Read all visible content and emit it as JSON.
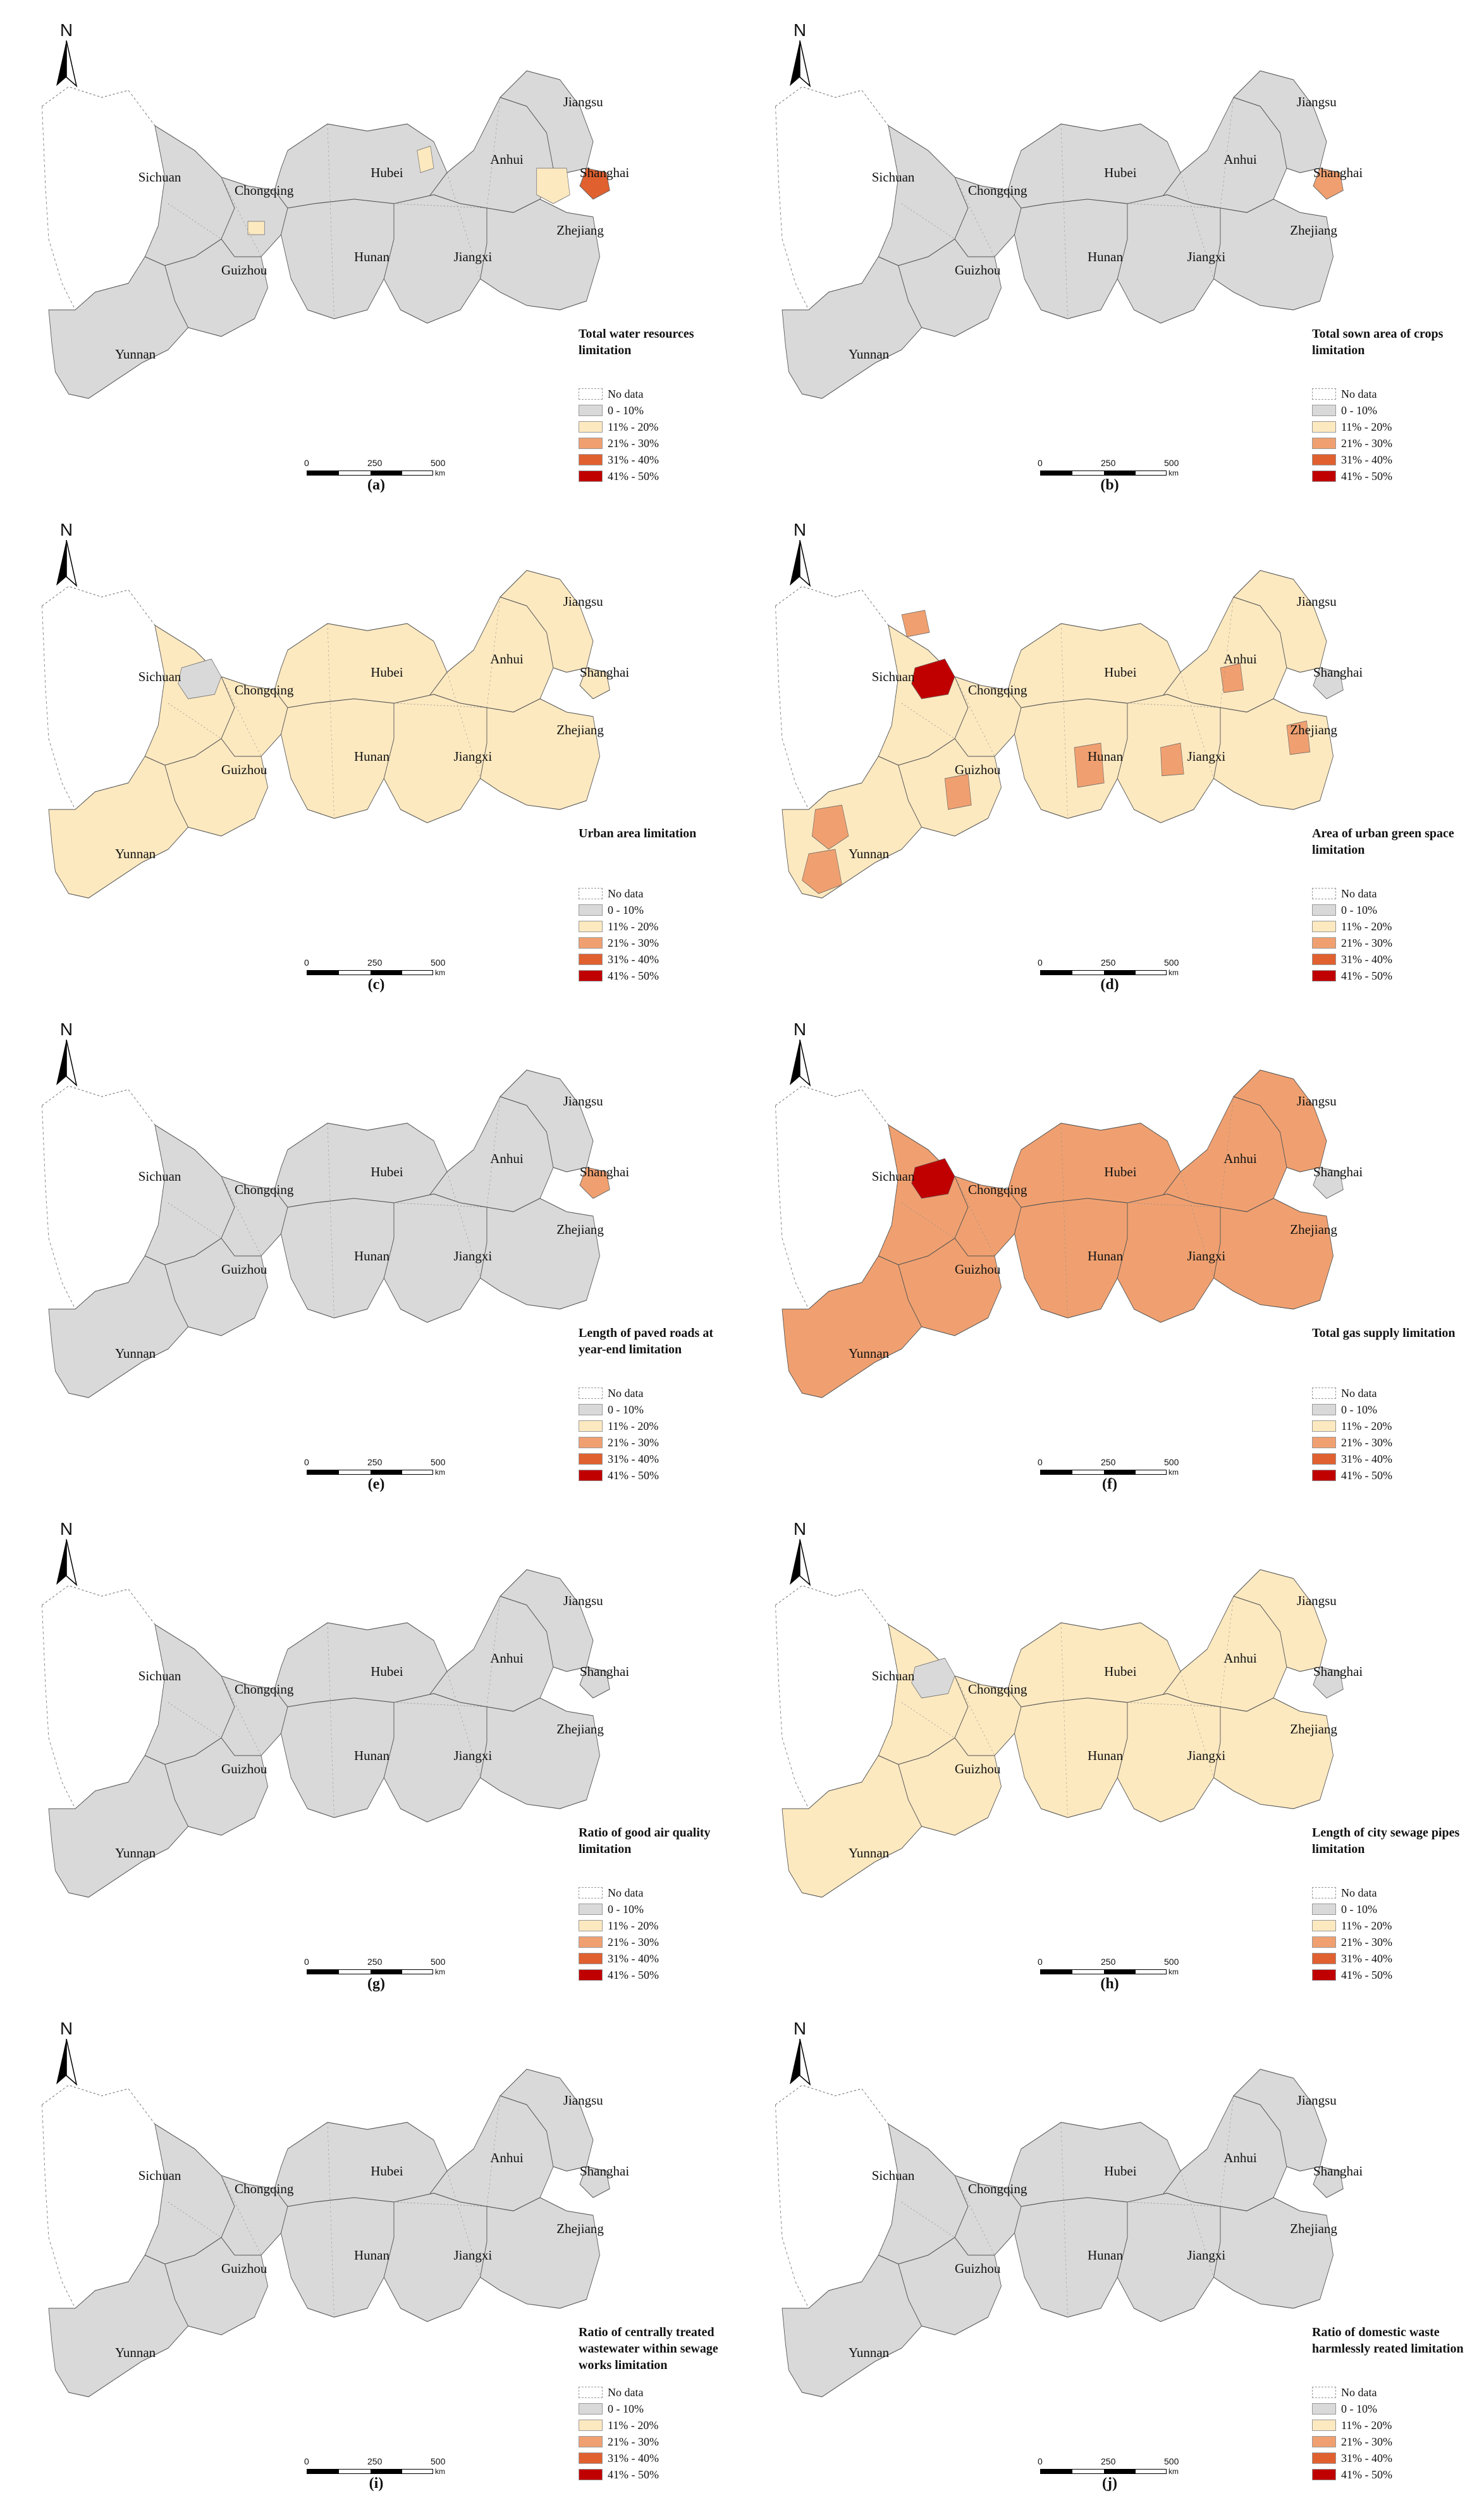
{
  "north_label": "N",
  "scale": {
    "ticks": [
      "0",
      "250",
      "500"
    ],
    "unit": "km"
  },
  "legend": [
    {
      "label": "No data",
      "color": "#ffffff"
    },
    {
      "label": "0 - 10%",
      "color": "#d9d9d9"
    },
    {
      "label": "11% - 20%",
      "color": "#fde9c0"
    },
    {
      "label": "21% - 30%",
      "color": "#f0a070"
    },
    {
      "label": "31% - 40%",
      "color": "#e06030"
    },
    {
      "label": "41% - 50%",
      "color": "#c00000"
    }
  ],
  "provinces": [
    "Sichuan",
    "Chongqing",
    "Guizhou",
    "Yunnan",
    "Hubei",
    "Hunan",
    "Anhui",
    "Jiangxi",
    "Jiangsu",
    "Zhejiang",
    "Shanghai"
  ],
  "panels": [
    {
      "label": "(a)",
      "title": "Total water resources limitation",
      "base": "#d9d9d9",
      "highlights": [
        {
          "region": "shanghai",
          "color": "#e06030"
        },
        {
          "region": "suzhou",
          "color": "#fde9c0"
        },
        {
          "region": "hubei_spot",
          "color": "#fde9c0"
        },
        {
          "region": "chongqing_spot",
          "color": "#fde9c0"
        }
      ]
    },
    {
      "label": "(b)",
      "title": "Total sown area of crops limitation",
      "base": "#d9d9d9",
      "highlights": [
        {
          "region": "shanghai",
          "color": "#f0a070"
        }
      ]
    },
    {
      "label": "(c)",
      "title": "Urban area limitation",
      "base": "#fde9c0",
      "highlights": [
        {
          "region": "chengdu",
          "color": "#d9d9d9"
        }
      ]
    },
    {
      "label": "(d)",
      "title": "Area of urban green space limitation",
      "base": "#fde9c0",
      "highlights": [
        {
          "region": "chengdu",
          "color": "#c00000"
        },
        {
          "region": "yunnan_w",
          "color": "#f0a070"
        },
        {
          "region": "yunnan_s",
          "color": "#f0a070"
        },
        {
          "region": "guizhou_spot",
          "color": "#f0a070"
        },
        {
          "region": "hunan_spot",
          "color": "#f0a070"
        },
        {
          "region": "jiangxi_spot",
          "color": "#f0a070"
        },
        {
          "region": "anhui_spot",
          "color": "#f0a070"
        },
        {
          "region": "zhejiang_spot",
          "color": "#f0a070"
        },
        {
          "region": "sichuan_n",
          "color": "#f0a070"
        },
        {
          "region": "shanghai",
          "color": "#d9d9d9"
        }
      ]
    },
    {
      "label": "(e)",
      "title": "Length of paved roads at year-end limitation",
      "base": "#d9d9d9",
      "highlights": [
        {
          "region": "shanghai",
          "color": "#f0a070"
        }
      ]
    },
    {
      "label": "(f)",
      "title": "Total gas supply limitation",
      "base": "#f0a070",
      "highlights": [
        {
          "region": "chengdu",
          "color": "#c00000"
        },
        {
          "region": "shanghai",
          "color": "#d9d9d9"
        }
      ]
    },
    {
      "label": "(g)",
      "title": "Ratio of good air quality limitation",
      "base": "#d9d9d9",
      "highlights": []
    },
    {
      "label": "(h)",
      "title": "Length of city sewage pipes limitation",
      "base": "#fde9c0",
      "highlights": [
        {
          "region": "chengdu",
          "color": "#d9d9d9"
        },
        {
          "region": "shanghai",
          "color": "#d9d9d9"
        }
      ]
    },
    {
      "label": "(i)",
      "title": "Ratio of centrally treated wastewater within sewage works limitation",
      "base": "#d9d9d9",
      "highlights": []
    },
    {
      "label": "(j)",
      "title": "Ratio of domestic waste harmlessly reated limitation",
      "base": "#d9d9d9",
      "highlights": []
    }
  ]
}
